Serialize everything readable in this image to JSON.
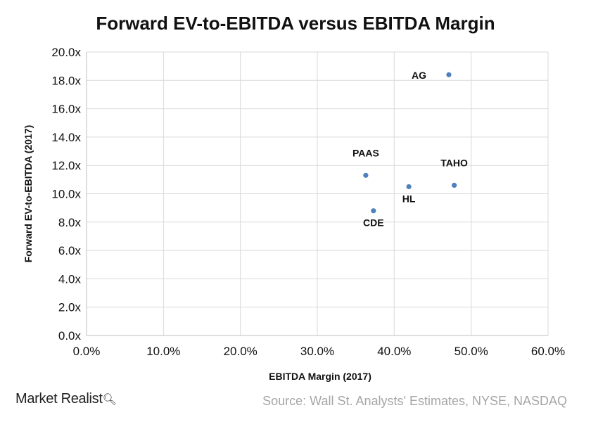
{
  "chart_data": {
    "type": "scatter",
    "title": "Forward EV-to-EBITDA versus EBITDA Margin",
    "xlabel": "EBITDA Margin (2017)",
    "ylabel": "Forward EV-to-EBITDA (2017)",
    "xlim": [
      0,
      60
    ],
    "ylim": [
      0,
      20
    ],
    "x_ticks": [
      "0.0%",
      "10.0%",
      "20.0%",
      "30.0%",
      "40.0%",
      "50.0%",
      "60.0%"
    ],
    "y_ticks": [
      "0.0x",
      "2.0x",
      "4.0x",
      "6.0x",
      "8.0x",
      "10.0x",
      "12.0x",
      "14.0x",
      "16.0x",
      "18.0x",
      "20.0x"
    ],
    "grid": true,
    "marker_color": "#4f81bd",
    "points": [
      {
        "label": "AG",
        "x": 47.1,
        "y": 18.4,
        "label_pos": "left"
      },
      {
        "label": "PAAS",
        "x": 36.3,
        "y": 11.3,
        "label_pos": "above"
      },
      {
        "label": "TAHO",
        "x": 47.8,
        "y": 10.6,
        "label_pos": "above"
      },
      {
        "label": "HL",
        "x": 41.9,
        "y": 10.5,
        "label_pos": "below"
      },
      {
        "label": "CDE",
        "x": 37.3,
        "y": 8.8,
        "label_pos": "below"
      }
    ]
  },
  "footer": {
    "brand": "Market Realist",
    "source": "Source: Wall St. Analysts' Estimates, NYSE, NASDAQ"
  }
}
